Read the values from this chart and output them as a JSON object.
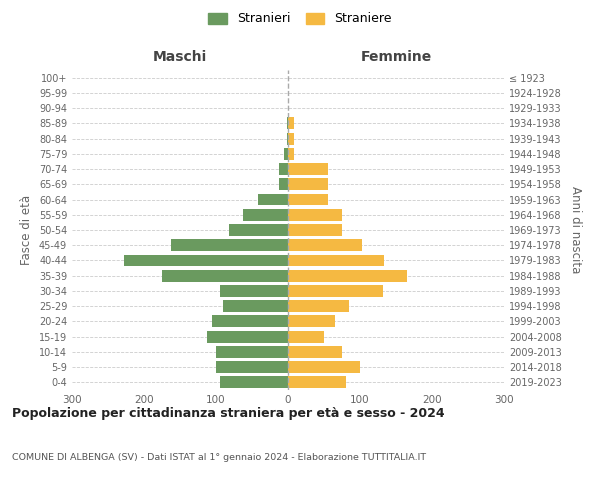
{
  "age_groups": [
    "100+",
    "95-99",
    "90-94",
    "85-89",
    "80-84",
    "75-79",
    "70-74",
    "65-69",
    "60-64",
    "55-59",
    "50-54",
    "45-49",
    "40-44",
    "35-39",
    "30-34",
    "25-29",
    "20-24",
    "15-19",
    "10-14",
    "5-9",
    "0-4"
  ],
  "birth_years": [
    "≤ 1923",
    "1924-1928",
    "1929-1933",
    "1934-1938",
    "1939-1943",
    "1944-1948",
    "1949-1953",
    "1954-1958",
    "1959-1963",
    "1964-1968",
    "1969-1973",
    "1974-1978",
    "1979-1983",
    "1984-1988",
    "1989-1993",
    "1994-1998",
    "1999-2003",
    "2004-2008",
    "2009-2013",
    "2014-2018",
    "2019-2023"
  ],
  "maschi": [
    0,
    0,
    0,
    2,
    2,
    5,
    12,
    12,
    42,
    62,
    82,
    162,
    228,
    175,
    95,
    90,
    105,
    112,
    100,
    100,
    95
  ],
  "femmine": [
    0,
    0,
    0,
    8,
    8,
    8,
    55,
    55,
    55,
    75,
    75,
    103,
    133,
    165,
    132,
    85,
    65,
    50,
    75,
    100,
    80
  ],
  "color_maschi": "#6a9a5f",
  "color_femmine": "#f5b942",
  "title": "Popolazione per cittadinanza straniera per età e sesso - 2024",
  "subtitle": "COMUNE DI ALBENGA (SV) - Dati ISTAT al 1° gennaio 2024 - Elaborazione TUTTITALIA.IT",
  "ylabel_left": "Fasce di età",
  "ylabel_right": "Anni di nascita",
  "header_left": "Maschi",
  "header_right": "Femmine",
  "legend_maschi": "Stranieri",
  "legend_femmine": "Straniere",
  "xlim": 300,
  "background_color": "#ffffff",
  "grid_color": "#cccccc"
}
